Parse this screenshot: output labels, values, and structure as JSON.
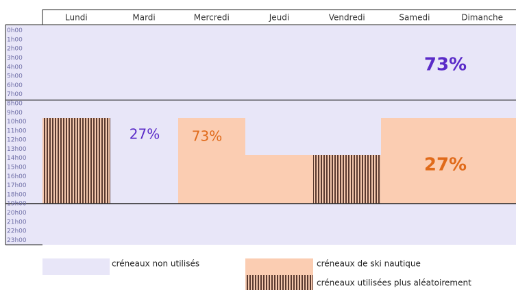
{
  "header": {
    "days": [
      "Lundi",
      "Mardi",
      "Mercredi",
      "Jeudi",
      "Vendredi",
      "Samedi",
      "Dimanche"
    ]
  },
  "hours": [
    "0h00",
    "1h00",
    "2h00",
    "3h00",
    "4h00",
    "5h00",
    "6h00",
    "7h00",
    "8h00",
    "9h00",
    "10h00",
    "11h00",
    "12h00",
    "13h00",
    "14h00",
    "15h00",
    "16h00",
    "17h00",
    "18h00",
    "19h00",
    "20h00",
    "21h00",
    "22h00",
    "23h00"
  ],
  "annotations": {
    "night_weekend": "73%",
    "day_weekday_unused": "27%",
    "day_weekday_ski": "73%",
    "day_weekend": "27%"
  },
  "legend": {
    "unused": "créneaux non utilisés",
    "ski": "créneaux de ski nautique",
    "random": "créneaux utilisées plus aléatoirement"
  }
}
